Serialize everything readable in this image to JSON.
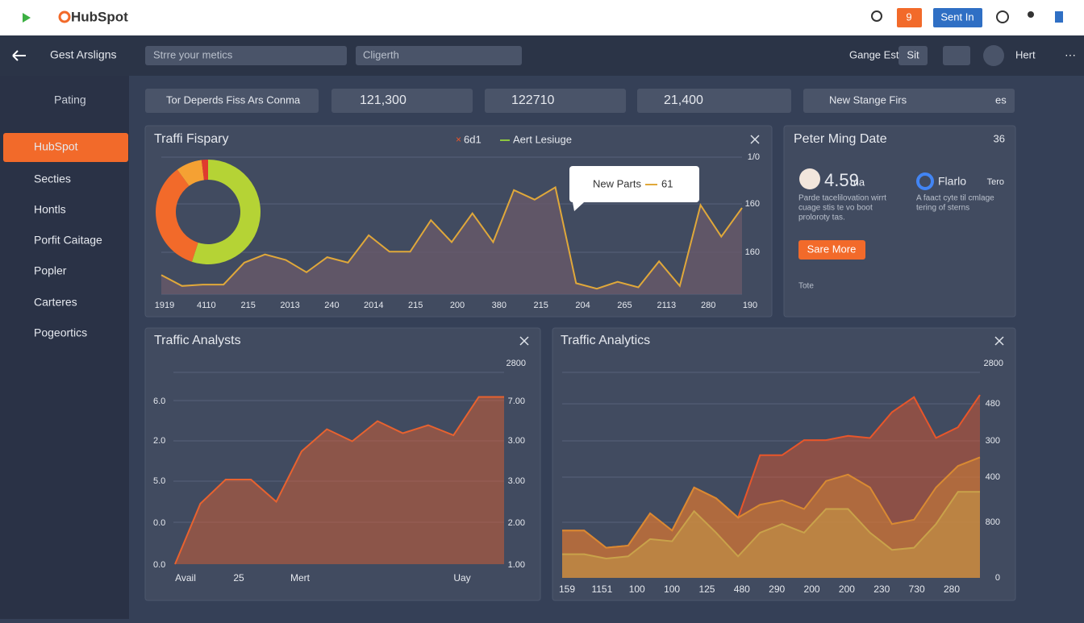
{
  "top_bar": {
    "brand": "HubSpot",
    "badge": "9",
    "button": "Sent In"
  },
  "nav_bar": {
    "back_title": "Gest Arsligns",
    "search": "Strre your metics",
    "field": "Cligerth",
    "account": "Gange Est",
    "account_tag": "Sit",
    "user": "Hert"
  },
  "sidebar": {
    "back": "Pating",
    "items": [
      "HubSpot",
      "Secties",
      "Hontls",
      "Porfit Caitage",
      "Popler",
      "Carteres",
      "Pogeortics"
    ]
  },
  "filters": [
    "Tor Deperds Fiss Ars Conma",
    "121,300",
    "122710",
    "21,400",
    "New Stange Firs",
    "es"
  ],
  "profile_card": {
    "title": "Peter Ming Date",
    "badge": "36",
    "stat": "4.59",
    "stat_unit": "ma",
    "brand": "Flarlo",
    "brand_tag": "Tero",
    "text_left": [
      "Parde tacelilovation wirrt",
      "cuage stis te vo boot",
      "proloroty tas."
    ],
    "text_right": [
      "A faact cyte til cmlage",
      "tering of sterns"
    ],
    "button": "Sare More",
    "footer": "Tote"
  },
  "chart_data": [
    {
      "type": "pie",
      "values": [
        55,
        35,
        8,
        2
      ],
      "colors": [
        "#b5d335",
        "#f26a2a",
        "#f5a133",
        "#e03a2e"
      ]
    },
    {
      "type": "line",
      "title": "Traffi Fispary",
      "legend": [
        {
          "name": "6d1",
          "color": "#e8562a"
        },
        {
          "name": "Aert Lesiuge",
          "color": "#8dc63f"
        }
      ],
      "tooltip": {
        "label": "New Parts",
        "value": "61"
      },
      "y_labels": [
        "1/0",
        "160",
        "160"
      ],
      "x_labels": [
        "1919",
        "4110",
        "215",
        "2013",
        "240",
        "2014",
        "215",
        "200",
        "380",
        "215",
        "204",
        "265",
        "2113",
        "280",
        "190"
      ],
      "ylim": [
        0,
        100
      ],
      "series": [
        {
          "color": "#e0a83a",
          "values": [
            14,
            6,
            7,
            7,
            23,
            29,
            25,
            16,
            27,
            23,
            43,
            31,
            31,
            54,
            38,
            59,
            38,
            76,
            69,
            78,
            8,
            4,
            9,
            5,
            24,
            6,
            65,
            42,
            63
          ]
        }
      ]
    },
    {
      "type": "area",
      "title": "Traffic Analysts",
      "top_label": "2800",
      "y_labels_left": [
        "6.0",
        "2.0",
        "5.0",
        "0.0",
        "0.0"
      ],
      "y_labels_right": [
        "7.00",
        "3.00",
        "3.00",
        "2.00",
        "1.00"
      ],
      "x_labels": [
        "Avail",
        "25",
        "Mert",
        "Uay"
      ],
      "ylim": [
        0,
        100
      ],
      "series": [
        {
          "color": "#e8622f",
          "values": [
            0,
            30,
            42,
            42,
            31,
            56,
            67,
            61,
            71,
            65,
            69,
            64,
            83,
            83
          ]
        }
      ]
    },
    {
      "type": "area",
      "title": "Traffic Analytics",
      "top_label": "2800",
      "y_labels_right": [
        "480",
        "300",
        "400",
        "800",
        "0"
      ],
      "x_labels": [
        "159",
        "1151",
        "100",
        "100",
        "125",
        "480",
        "290",
        "200",
        "200",
        "230",
        "730",
        "280"
      ],
      "ylim": [
        0,
        100
      ],
      "series": [
        {
          "color": "#e8562a",
          "values": [
            22,
            22,
            14,
            15,
            30,
            22,
            42,
            37,
            28,
            57,
            57,
            64,
            64,
            66,
            65,
            77,
            84,
            65,
            70,
            85
          ]
        },
        {
          "color": "#d98a32",
          "values": [
            22,
            22,
            14,
            15,
            30,
            22,
            42,
            37,
            28,
            34,
            36,
            32,
            45,
            48,
            42,
            25,
            27,
            42,
            52,
            56
          ]
        },
        {
          "color": "#c9a24a",
          "values": [
            11,
            11,
            9,
            10,
            18,
            17,
            31,
            21,
            10,
            21,
            25,
            21,
            32,
            32,
            21,
            13,
            14,
            25,
            40,
            40
          ]
        }
      ]
    }
  ]
}
